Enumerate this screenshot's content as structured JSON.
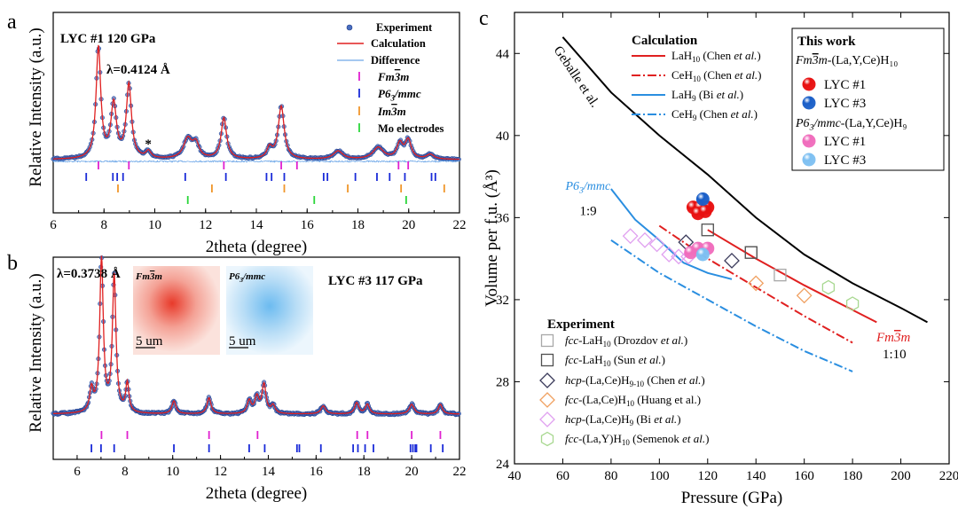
{
  "chart_data": [
    {
      "type": "line",
      "panel": "a",
      "title": "LYC #1 120 GPa",
      "wavelength": "λ=0.4124 Å",
      "xlabel": "2theta (degree)",
      "ylabel": "Relative Intensity (a.u.)",
      "xlim": [
        6,
        22
      ],
      "xticks": [
        6,
        8,
        10,
        12,
        14,
        16,
        18,
        20,
        22
      ],
      "annotation": "*",
      "annotation_x": 9.75,
      "legend": [
        "Experiment",
        "Calculation",
        "Difference",
        "Fm3̄m",
        "P63/mmc",
        "Im3̄m",
        "Mo electrodes"
      ],
      "peaks": [
        {
          "x": 7.78,
          "h": 0.95,
          "w": 0.11
        },
        {
          "x": 8.38,
          "h": 0.46,
          "w": 0.13
        },
        {
          "x": 8.98,
          "h": 0.63,
          "w": 0.12
        },
        {
          "x": 9.75,
          "h": 0.06,
          "w": 0.12
        },
        {
          "x": 11.3,
          "h": 0.17,
          "w": 0.2
        },
        {
          "x": 11.62,
          "h": 0.12,
          "w": 0.15
        },
        {
          "x": 12.72,
          "h": 0.35,
          "w": 0.13
        },
        {
          "x": 14.52,
          "h": 0.09,
          "w": 0.12
        },
        {
          "x": 14.98,
          "h": 0.45,
          "w": 0.14
        },
        {
          "x": 17.22,
          "h": 0.07,
          "w": 0.22
        },
        {
          "x": 18.8,
          "h": 0.1,
          "w": 0.25
        },
        {
          "x": 19.65,
          "h": 0.13,
          "w": 0.14
        },
        {
          "x": 19.98,
          "h": 0.16,
          "w": 0.14
        },
        {
          "x": 20.85,
          "h": 0.04,
          "w": 0.18
        }
      ],
      "ticks": [
        {
          "name": "Fm3̄m",
          "color": "#e020d0",
          "row": 0,
          "positions": [
            7.78,
            8.98,
            12.72,
            14.98,
            15.6,
            19.6,
            19.98
          ]
        },
        {
          "name": "P63/mmc",
          "color": "#1a2bd8",
          "row": 1,
          "positions": [
            7.3,
            8.35,
            8.52,
            8.75,
            11.2,
            12.8,
            14.4,
            14.6,
            15.1,
            16.65,
            16.8,
            17.9,
            18.75,
            19.25,
            19.85,
            20.9,
            21.05
          ]
        },
        {
          "name": "Im3̄m",
          "color": "#f0962a",
          "row": 2,
          "positions": [
            8.55,
            12.25,
            15.1,
            17.6,
            19.7,
            21.4
          ]
        },
        {
          "name": "Mo electrodes",
          "color": "#2ad63a",
          "row": 3,
          "positions": [
            11.3,
            16.28,
            19.9
          ]
        }
      ]
    },
    {
      "type": "line",
      "panel": "b",
      "title": "LYC #3 117 GPa",
      "wavelength": "λ=0.3738 Å",
      "xlabel": "2theta (degree)",
      "ylabel": "Relative Intensity (a.u.)",
      "xlim": [
        5,
        22
      ],
      "xticks": [
        6,
        8,
        10,
        12,
        14,
        16,
        18,
        20,
        22
      ],
      "inset_labels": [
        "Fm3̄m",
        "P63/mmc"
      ],
      "scale_bar": "5 um",
      "peaks": [
        {
          "x": 6.6,
          "h": 0.14,
          "w": 0.09
        },
        {
          "x": 7.02,
          "h": 0.95,
          "w": 0.09
        },
        {
          "x": 7.55,
          "h": 0.85,
          "w": 0.09
        },
        {
          "x": 8.1,
          "h": 0.18,
          "w": 0.08
        },
        {
          "x": 10.05,
          "h": 0.08,
          "w": 0.1
        },
        {
          "x": 11.52,
          "h": 0.1,
          "w": 0.1
        },
        {
          "x": 13.2,
          "h": 0.08,
          "w": 0.1
        },
        {
          "x": 13.52,
          "h": 0.1,
          "w": 0.1
        },
        {
          "x": 13.82,
          "h": 0.18,
          "w": 0.1
        },
        {
          "x": 14.2,
          "h": 0.05,
          "w": 0.1
        },
        {
          "x": 16.3,
          "h": 0.05,
          "w": 0.12
        },
        {
          "x": 17.7,
          "h": 0.07,
          "w": 0.1
        },
        {
          "x": 18.15,
          "h": 0.06,
          "w": 0.1
        },
        {
          "x": 20.0,
          "h": 0.06,
          "w": 0.12
        },
        {
          "x": 21.2,
          "h": 0.06,
          "w": 0.1
        }
      ],
      "ticks": [
        {
          "name": "Fm3̄m",
          "color": "#e020d0",
          "row": 0,
          "positions": [
            7.02,
            8.1,
            11.52,
            13.55,
            17.72,
            18.15,
            20.0,
            21.2
          ]
        },
        {
          "name": "P63/mmc",
          "color": "#1a2bd8",
          "row": 1,
          "positions": [
            6.6,
            7.0,
            7.55,
            10.05,
            11.52,
            13.2,
            13.85,
            15.2,
            15.3,
            16.2,
            17.55,
            17.75,
            18.05,
            18.4,
            19.95,
            20.05,
            20.15,
            20.2,
            20.8,
            21.3
          ]
        }
      ]
    },
    {
      "type": "scatter",
      "panel": "c",
      "xlabel": "Pressure (GPa)",
      "ylabel": "Volume per f.u. (Å³)",
      "xlim": [
        40,
        220
      ],
      "ylim": [
        24,
        46
      ],
      "xticks": [
        40,
        60,
        80,
        100,
        120,
        140,
        160,
        180,
        200,
        220
      ],
      "yticks": [
        24,
        28,
        32,
        36,
        40,
        44
      ],
      "annotations": [
        {
          "text": "Geballe et al.",
          "x": 60,
          "y": 41.5
        },
        {
          "text": "P63/mmc",
          "x": 78,
          "y": 37.3
        },
        {
          "text": "1:9",
          "x": 78,
          "y": 36.3
        },
        {
          "text": "Fm3̄m",
          "x": 186,
          "y": 31.1
        },
        {
          "text": "1:10",
          "x": 186,
          "y": 30.0
        }
      ],
      "calculation_title": "Calculation",
      "lines": [
        {
          "name": "Geballe et al.",
          "color": "#000000",
          "dash": "",
          "points": [
            [
              60,
              44.8
            ],
            [
              80,
              42.1
            ],
            [
              100,
              40.0
            ],
            [
              120,
              38.1
            ],
            [
              140,
              36.0
            ],
            [
              160,
              34.2
            ],
            [
              180,
              32.8
            ],
            [
              200,
              31.6
            ],
            [
              211,
              30.9
            ]
          ]
        },
        {
          "name": "LaH10 (Chen et al.)",
          "color": "#e02020",
          "dash": "",
          "points": [
            [
              120,
              35.4
            ],
            [
              140,
              34.0
            ],
            [
              160,
              32.7
            ],
            [
              180,
              31.5
            ],
            [
              190,
              30.9
            ]
          ]
        },
        {
          "name": "CeH10 (Chen et al.)",
          "color": "#e02020",
          "dash": "10,3,2,3",
          "points": [
            [
              100,
              35.6
            ],
            [
              120,
              34.0
            ],
            [
              140,
              32.6
            ],
            [
              160,
              31.2
            ],
            [
              180,
              29.9
            ]
          ]
        },
        {
          "name": "LaH9 (Bi et al.)",
          "color": "#2a8ee0",
          "dash": "",
          "points": [
            [
              80,
              37.4
            ],
            [
              90,
              35.9
            ],
            [
              100,
              34.9
            ],
            [
              110,
              33.8
            ],
            [
              120,
              33.3
            ],
            [
              130,
              33.0
            ]
          ]
        },
        {
          "name": "CeH9 (Chen et al.)",
          "color": "#2a8ee0",
          "dash": "10,3,2,3",
          "points": [
            [
              80,
              34.9
            ],
            [
              100,
              33.3
            ],
            [
              120,
              32.0
            ],
            [
              140,
              30.7
            ],
            [
              160,
              29.5
            ],
            [
              180,
              28.5
            ]
          ]
        }
      ],
      "this_work_title": "This work",
      "this_work_fm3m": "Fm3̄m-(La,Y,Ce)H10",
      "this_work_p63": "P63/mmc-(La,Y,Ce)H9",
      "this_work": [
        {
          "name": "LYC #1",
          "phase": "Fm3̄m",
          "color": "#e81010",
          "points": [
            [
              114,
              36.5
            ],
            [
              117,
              36.5
            ],
            [
              120,
              36.5
            ],
            [
              116,
              36.2
            ],
            [
              119,
              36.3
            ]
          ]
        },
        {
          "name": "LYC #3",
          "phase": "Fm3̄m",
          "color": "#1a5fc8",
          "points": [
            [
              118,
              36.9
            ]
          ]
        },
        {
          "name": "LYC #1",
          "phase": "P63/mmc",
          "color": "#f06cbc",
          "points": [
            [
              113,
              34.3
            ],
            [
              116,
              34.5
            ],
            [
              120,
              34.5
            ]
          ]
        },
        {
          "name": "LYC #3",
          "phase": "P63/mmc",
          "color": "#7ec0f2",
          "points": [
            [
              118,
              34.2
            ]
          ]
        }
      ],
      "experiment_title": "Experiment",
      "experiment": [
        {
          "name": "fcc-LaH10 (Drozdov et al.)",
          "marker": "square",
          "color": "#a8a8a8",
          "points": [
            [
              138,
              34.3
            ],
            [
              150,
              33.2
            ]
          ]
        },
        {
          "name": "fcc-LaH10 (Sun et al.)",
          "marker": "square",
          "color": "#505050",
          "points": [
            [
              120,
              35.4
            ],
            [
              138,
              34.3
            ]
          ]
        },
        {
          "name": "hcp-(La,Ce)H9-10 (Chen et al.)",
          "marker": "diamond",
          "color": "#3a3a5a",
          "points": [
            [
              111,
              34.8
            ],
            [
              130,
              33.9
            ]
          ]
        },
        {
          "name": "fcc-(La,Ce)H10 (Huang et al.)",
          "marker": "diamond",
          "color": "#f0a060",
          "points": [
            [
              140,
              32.8
            ],
            [
              160,
              32.2
            ]
          ]
        },
        {
          "name": "hcp-(La,Ce)H9 (Bi et al.)",
          "marker": "diamond",
          "color": "#e0a0f0",
          "points": [
            [
              88,
              35.1
            ],
            [
              94,
              34.9
            ],
            [
              99,
              34.7
            ],
            [
              104,
              34.2
            ],
            [
              108,
              34.1
            ],
            [
              112,
              34.1
            ]
          ]
        },
        {
          "name": "fcc-(La,Y)H10 (Semenok et al.)",
          "marker": "hexagon",
          "color": "#a8d890",
          "points": [
            [
              170,
              32.6
            ],
            [
              180,
              31.8
            ]
          ]
        }
      ]
    }
  ]
}
